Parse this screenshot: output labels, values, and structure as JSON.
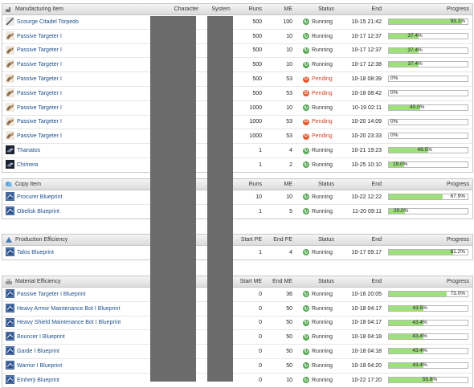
{
  "sections": [
    {
      "key": "manufacturing",
      "header": "Manufacturing Item",
      "icon": "factory-icon",
      "columns": {
        "character": "Character",
        "system": "System",
        "a": "Runs",
        "b": "ME",
        "status": "Status",
        "end": "End",
        "progress": "Progress"
      },
      "rows": [
        {
          "name": "Scourge Citadel Torpedo",
          "thumb": "torpedo-icon",
          "a": "500",
          "b": "100",
          "status": "Running",
          "end": "10-15 21:42",
          "progress": 93.1,
          "label": "93.1%"
        },
        {
          "name": "Passive Targeter I",
          "thumb": "targeter-icon",
          "a": "500",
          "b": "10",
          "status": "Running",
          "end": "10-17 12:37",
          "progress": 37.4,
          "label": "37.4%"
        },
        {
          "name": "Passive Targeter I",
          "thumb": "targeter-icon",
          "a": "500",
          "b": "10",
          "status": "Running",
          "end": "10-17 12:37",
          "progress": 37.4,
          "label": "37.4%"
        },
        {
          "name": "Passive Targeter I",
          "thumb": "targeter-icon",
          "a": "500",
          "b": "10",
          "status": "Running",
          "end": "10-17 12:38",
          "progress": 37.4,
          "label": "37.4%"
        },
        {
          "name": "Passive Targeter I",
          "thumb": "targeter-icon",
          "a": "500",
          "b": "53",
          "status": "Pending",
          "end": "10-18 08:39",
          "progress": 0,
          "label": "0%"
        },
        {
          "name": "Passive Targeter I",
          "thumb": "targeter-icon",
          "a": "500",
          "b": "53",
          "status": "Pending",
          "end": "10-18 08:42",
          "progress": 0,
          "label": "0%"
        },
        {
          "name": "Passive Targeter I",
          "thumb": "targeter-icon",
          "a": "1000",
          "b": "10",
          "status": "Running",
          "end": "10-19 02:11",
          "progress": 40.0,
          "label": "40.0%"
        },
        {
          "name": "Passive Targeter I",
          "thumb": "targeter-icon",
          "a": "1000",
          "b": "53",
          "status": "Pending",
          "end": "10-20 14:09",
          "progress": 0,
          "label": "0%"
        },
        {
          "name": "Passive Targeter I",
          "thumb": "targeter-icon",
          "a": "1000",
          "b": "53",
          "status": "Pending",
          "end": "10-20 23:33",
          "progress": 0,
          "label": "0%"
        },
        {
          "name": "Thanatos",
          "thumb": "ship-icon",
          "a": "1",
          "b": "4",
          "status": "Running",
          "end": "10-21 19:23",
          "progress": 49.5,
          "label": "49.5%"
        },
        {
          "name": "Chimera",
          "thumb": "ship-icon",
          "a": "1",
          "b": "2",
          "status": "Running",
          "end": "10-25 10:10",
          "progress": 19.0,
          "label": "19.0%"
        }
      ]
    },
    {
      "key": "copy",
      "header": "Copy Item",
      "icon": "copy-icon",
      "columns": {
        "character": "",
        "system": "",
        "a": "Runs",
        "b": "ME",
        "status": "Status",
        "end": "End",
        "progress": "Progress"
      },
      "rows": [
        {
          "name": "Procurer Blueprint",
          "thumb": "blueprint-icon",
          "a": "10",
          "b": "10",
          "status": "Running",
          "end": "10-22 12:22",
          "progress": 67.9,
          "label": "67.9%"
        },
        {
          "name": "Obelisk Blueprint",
          "thumb": "blueprint-icon",
          "a": "1",
          "b": "5",
          "status": "Running",
          "end": "11-20 09:11",
          "progress": 20.0,
          "label": "20.0%"
        }
      ]
    },
    {
      "key": "pe",
      "header": "Production Efficiency",
      "icon": "production-icon",
      "columns": {
        "character": "",
        "system": "",
        "a": "Start PE",
        "b": "End PE",
        "status": "Status",
        "end": "End",
        "progress": "Progress"
      },
      "rows": [
        {
          "name": "Talos Blueprint",
          "thumb": "blueprint-icon",
          "a": "1",
          "b": "4",
          "status": "Running",
          "end": "10-17 09:17",
          "progress": 81.2,
          "label": "81.2%"
        }
      ]
    },
    {
      "key": "me",
      "header": "Material Efficiency",
      "icon": "material-icon",
      "columns": {
        "character": "",
        "system": "",
        "a": "Start ME",
        "b": "End ME",
        "status": "Status",
        "end": "End",
        "progress": "Progress"
      },
      "rows": [
        {
          "name": "Passive Targeter I Blueprint",
          "thumb": "blueprint-icon",
          "a": "0",
          "b": "36",
          "status": "Running",
          "end": "10-16 20:05",
          "progress": 73.0,
          "label": "73.0%"
        },
        {
          "name": "Heavy Armor Maintenance Bot I Blueprint",
          "thumb": "blueprint-icon",
          "a": "0",
          "b": "50",
          "status": "Running",
          "end": "10-18 04:17",
          "progress": 43.5,
          "label": "43.5%"
        },
        {
          "name": "Heavy Shield Maintenance Bot I Blueprint",
          "thumb": "blueprint-icon",
          "a": "0",
          "b": "50",
          "status": "Running",
          "end": "10-18 04:17",
          "progress": 43.4,
          "label": "43.4%"
        },
        {
          "name": "Bouncer I Blueprint",
          "thumb": "blueprint-icon",
          "a": "0",
          "b": "50",
          "status": "Running",
          "end": "10-18 04:18",
          "progress": 43.4,
          "label": "43.4%"
        },
        {
          "name": "Garde I Blueprint",
          "thumb": "blueprint-icon",
          "a": "0",
          "b": "50",
          "status": "Running",
          "end": "10-18 04:18",
          "progress": 43.4,
          "label": "43.4%"
        },
        {
          "name": "Warrior I Blueprint",
          "thumb": "blueprint-icon",
          "a": "0",
          "b": "50",
          "status": "Running",
          "end": "10-18 04:20",
          "progress": 43.4,
          "label": "43.4%"
        },
        {
          "name": "Einherji Blueprint",
          "thumb": "blueprint-icon",
          "a": "0",
          "b": "10",
          "status": "Running",
          "end": "10-22 17:20",
          "progress": 55.8,
          "label": "55.8%"
        }
      ]
    }
  ],
  "colors": {
    "link": "#1d4f8c",
    "bar_fill": "#9ee07a",
    "pending": "#d0452a",
    "running": "#5aa85a",
    "redaction": "#6b6b6b"
  }
}
